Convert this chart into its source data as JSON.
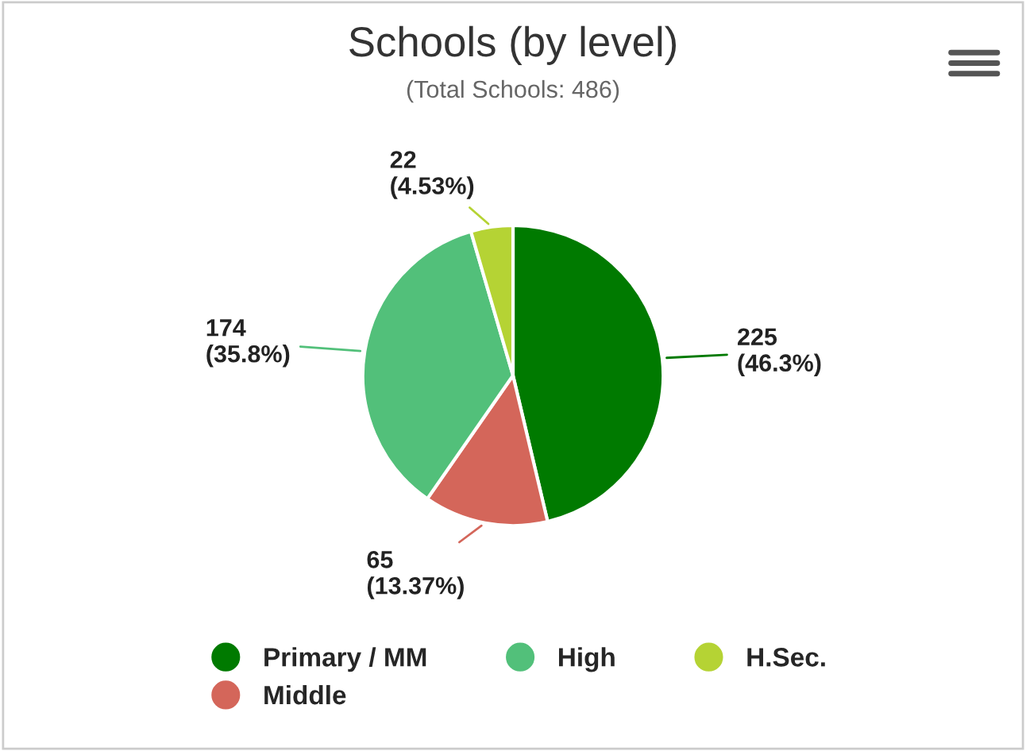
{
  "chart_data": {
    "type": "pie",
    "title": "Schools (by level)",
    "subtitle": "(Total Schools: 486)",
    "categories": [
      "Primary / MM",
      "Middle",
      "High",
      "H.Sec."
    ],
    "values": [
      225,
      65,
      174,
      22
    ],
    "colors": [
      "#007a00",
      "#d4665a",
      "#52c07a",
      "#b5d334"
    ],
    "value_labels": [
      "225\n(46.3%)",
      "65\n(13.37%)",
      "174\n(35.8%)",
      "22\n(4.53%)"
    ],
    "legend": "bottom"
  }
}
